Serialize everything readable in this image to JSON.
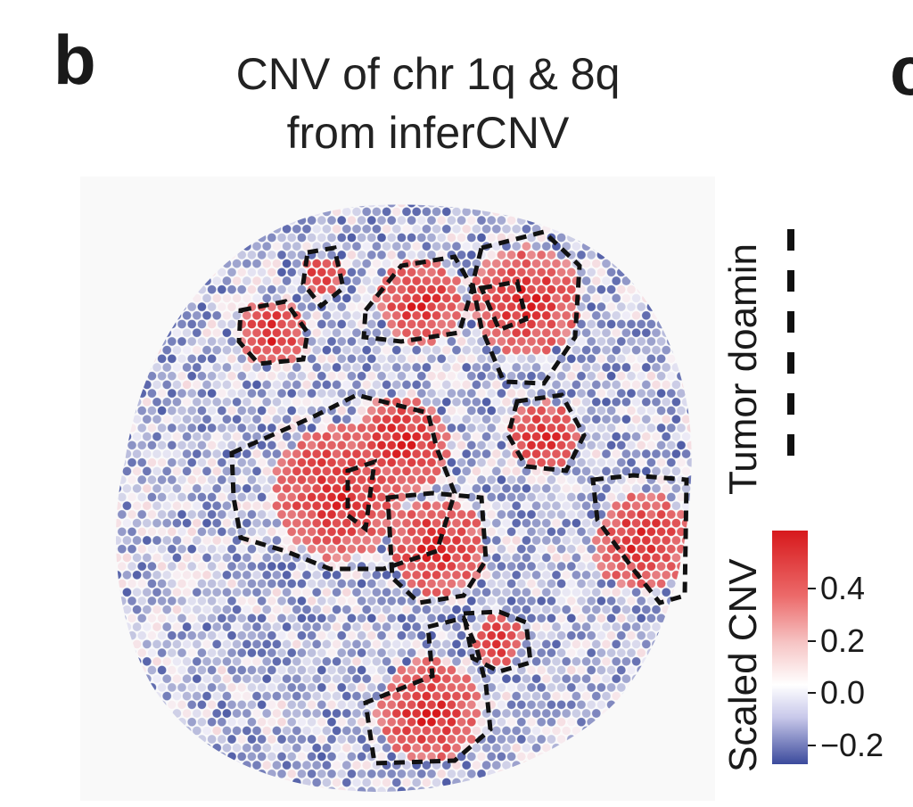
{
  "panel_letter": "b",
  "next_panel_letter": "c",
  "title_line1": "CNV of chr 1q & 8q",
  "title_line2": "from inferCNV",
  "legend": {
    "domain_label": "Tumor doamin",
    "colorbar_label": "Scaled CNV",
    "ticks": [
      "0.4",
      "0.2",
      "0.0",
      "−0.2"
    ],
    "tick_values": [
      0.4,
      0.2,
      0.0,
      -0.2
    ],
    "range": [
      -0.3,
      0.6
    ]
  },
  "colors": {
    "high": "#d7191c",
    "mid": "#ffffff",
    "low": "#3b4a9c",
    "outline": "#111111"
  }
}
